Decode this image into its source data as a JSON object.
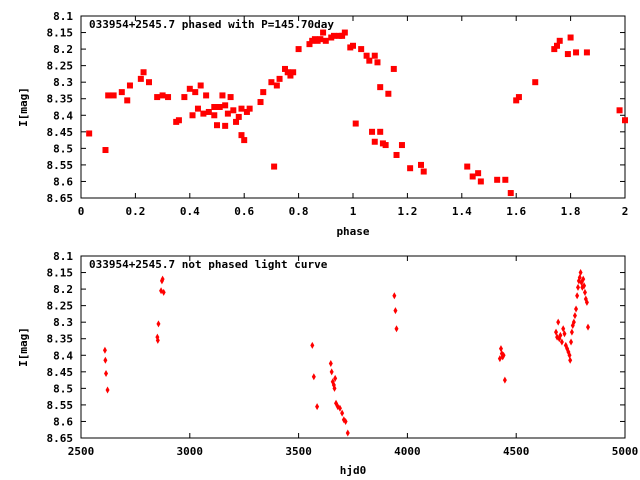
{
  "chart_data": [
    {
      "type": "scatter",
      "title": "033954+2545.7 phased with P=145.70day",
      "xlabel": "phase",
      "ylabel": "I[mag]",
      "xlim": [
        0,
        2
      ],
      "ylim": [
        8.65,
        8.1
      ],
      "y_inverted": true,
      "grid": false,
      "marker_color": "#ff0000",
      "marker": "square",
      "x_ticks": [
        "0",
        "0.2",
        "0.4",
        "0.6",
        "0.8",
        "1",
        "1.2",
        "1.4",
        "1.6",
        "1.8",
        "2"
      ],
      "y_ticks": [
        "8.1",
        "8.15",
        "8.2",
        "8.25",
        "8.3",
        "8.35",
        "8.4",
        "8.45",
        "8.5",
        "8.55",
        "8.6",
        "8.65"
      ],
      "points": [
        [
          0.03,
          8.455
        ],
        [
          0.09,
          8.505
        ],
        [
          0.1,
          8.34
        ],
        [
          0.12,
          8.34
        ],
        [
          0.15,
          8.33
        ],
        [
          0.17,
          8.355
        ],
        [
          0.18,
          8.31
        ],
        [
          0.22,
          8.29
        ],
        [
          0.23,
          8.27
        ],
        [
          0.25,
          8.3
        ],
        [
          0.28,
          8.345
        ],
        [
          0.3,
          8.34
        ],
        [
          0.32,
          8.345
        ],
        [
          0.35,
          8.42
        ],
        [
          0.36,
          8.415
        ],
        [
          0.38,
          8.345
        ],
        [
          0.4,
          8.32
        ],
        [
          0.41,
          8.4
        ],
        [
          0.42,
          8.33
        ],
        [
          0.43,
          8.38
        ],
        [
          0.44,
          8.31
        ],
        [
          0.45,
          8.395
        ],
        [
          0.46,
          8.34
        ],
        [
          0.47,
          8.39
        ],
        [
          0.49,
          8.4
        ],
        [
          0.49,
          8.375
        ],
        [
          0.5,
          8.43
        ],
        [
          0.51,
          8.375
        ],
        [
          0.52,
          8.34
        ],
        [
          0.53,
          8.432
        ],
        [
          0.53,
          8.37
        ],
        [
          0.54,
          8.395
        ],
        [
          0.55,
          8.345
        ],
        [
          0.56,
          8.385
        ],
        [
          0.57,
          8.42
        ],
        [
          0.58,
          8.405
        ],
        [
          0.59,
          8.38
        ],
        [
          0.59,
          8.46
        ],
        [
          0.6,
          8.475
        ],
        [
          0.61,
          8.39
        ],
        [
          0.62,
          8.38
        ],
        [
          0.66,
          8.36
        ],
        [
          0.67,
          8.33
        ],
        [
          0.7,
          8.3
        ],
        [
          0.71,
          8.555
        ],
        [
          0.72,
          8.31
        ],
        [
          0.73,
          8.29
        ],
        [
          0.75,
          8.26
        ],
        [
          0.76,
          8.27
        ],
        [
          0.77,
          8.28
        ],
        [
          0.78,
          8.27
        ],
        [
          0.8,
          8.2
        ],
        [
          0.84,
          8.185
        ],
        [
          0.85,
          8.175
        ],
        [
          0.86,
          8.17
        ],
        [
          0.87,
          8.175
        ],
        [
          0.88,
          8.17
        ],
        [
          0.89,
          8.15
        ],
        [
          0.9,
          8.175
        ],
        [
          0.92,
          8.165
        ],
        [
          0.93,
          8.16
        ],
        [
          0.95,
          8.16
        ],
        [
          0.96,
          8.16
        ],
        [
          0.97,
          8.15
        ],
        [
          0.99,
          8.195
        ],
        [
          1.0,
          8.19
        ],
        [
          1.01,
          8.425
        ],
        [
          1.03,
          8.2
        ],
        [
          1.05,
          8.22
        ],
        [
          1.06,
          8.235
        ],
        [
          1.07,
          8.45
        ],
        [
          1.08,
          8.48
        ],
        [
          1.08,
          8.22
        ],
        [
          1.09,
          8.24
        ],
        [
          1.1,
          8.315
        ],
        [
          1.1,
          8.45
        ],
        [
          1.11,
          8.485
        ],
        [
          1.12,
          8.49
        ],
        [
          1.13,
          8.335
        ],
        [
          1.15,
          8.26
        ],
        [
          1.16,
          8.52
        ],
        [
          1.18,
          8.49
        ],
        [
          1.21,
          8.56
        ],
        [
          1.25,
          8.55
        ],
        [
          1.26,
          8.57
        ],
        [
          1.42,
          8.555
        ],
        [
          1.44,
          8.585
        ],
        [
          1.46,
          8.575
        ],
        [
          1.47,
          8.6
        ],
        [
          1.53,
          8.595
        ],
        [
          1.56,
          8.595
        ],
        [
          1.58,
          8.635
        ],
        [
          1.6,
          8.355
        ],
        [
          1.61,
          8.345
        ],
        [
          1.67,
          8.3
        ],
        [
          1.74,
          8.2
        ],
        [
          1.75,
          8.19
        ],
        [
          1.76,
          8.175
        ],
        [
          1.79,
          8.215
        ],
        [
          1.8,
          8.165
        ],
        [
          1.82,
          8.21
        ],
        [
          1.86,
          8.21
        ],
        [
          1.98,
          8.385
        ],
        [
          2.0,
          8.415
        ]
      ]
    },
    {
      "type": "scatter",
      "title": "033954+2545.7 not phased light curve",
      "xlabel": "hjd0",
      "ylabel": "I[mag]",
      "xlim": [
        2500,
        5000
      ],
      "ylim": [
        8.65,
        8.1
      ],
      "y_inverted": true,
      "grid": false,
      "marker_color": "#ff0000",
      "marker": "diamond",
      "x_ticks": [
        "2500",
        "3000",
        "3500",
        "4000",
        "4500",
        "5000"
      ],
      "y_ticks": [
        "8.1",
        "8.15",
        "8.2",
        "8.25",
        "8.3",
        "8.35",
        "8.4",
        "8.45",
        "8.5",
        "8.55",
        "8.6",
        "8.65"
      ],
      "points": [
        [
          2610,
          8.385
        ],
        [
          2612,
          8.415
        ],
        [
          2615,
          8.455
        ],
        [
          2622,
          8.505
        ],
        [
          2851,
          8.345
        ],
        [
          2853,
          8.355
        ],
        [
          2856,
          8.305
        ],
        [
          2868,
          8.205
        ],
        [
          2872,
          8.175
        ],
        [
          2875,
          8.17
        ],
        [
          2880,
          8.21
        ],
        [
          3563,
          8.37
        ],
        [
          3570,
          8.465
        ],
        [
          3585,
          8.555
        ],
        [
          3648,
          8.425
        ],
        [
          3652,
          8.45
        ],
        [
          3657,
          8.48
        ],
        [
          3662,
          8.49
        ],
        [
          3665,
          8.5
        ],
        [
          3668,
          8.47
        ],
        [
          3672,
          8.545
        ],
        [
          3680,
          8.555
        ],
        [
          3690,
          8.56
        ],
        [
          3700,
          8.575
        ],
        [
          3708,
          8.595
        ],
        [
          3716,
          8.6
        ],
        [
          3726,
          8.635
        ],
        [
          3940,
          8.22
        ],
        [
          3945,
          8.265
        ],
        [
          3950,
          8.32
        ],
        [
          4425,
          8.41
        ],
        [
          4430,
          8.38
        ],
        [
          4434,
          8.395
        ],
        [
          4438,
          8.405
        ],
        [
          4442,
          8.4
        ],
        [
          4448,
          8.475
        ],
        [
          4683,
          8.33
        ],
        [
          4688,
          8.345
        ],
        [
          4693,
          8.3
        ],
        [
          4698,
          8.35
        ],
        [
          4703,
          8.34
        ],
        [
          4710,
          8.36
        ],
        [
          4716,
          8.32
        ],
        [
          4722,
          8.335
        ],
        [
          4728,
          8.37
        ],
        [
          4734,
          8.38
        ],
        [
          4740,
          8.39
        ],
        [
          4745,
          8.4
        ],
        [
          4748,
          8.415
        ],
        [
          4752,
          8.36
        ],
        [
          4756,
          8.33
        ],
        [
          4760,
          8.31
        ],
        [
          4765,
          8.3
        ],
        [
          4770,
          8.28
        ],
        [
          4775,
          8.26
        ],
        [
          4780,
          8.22
        ],
        [
          4784,
          8.195
        ],
        [
          4788,
          8.175
        ],
        [
          4792,
          8.165
        ],
        [
          4796,
          8.15
        ],
        [
          4800,
          8.18
        ],
        [
          4804,
          8.195
        ],
        [
          4808,
          8.17
        ],
        [
          4812,
          8.19
        ],
        [
          4816,
          8.21
        ],
        [
          4820,
          8.23
        ],
        [
          4825,
          8.24
        ],
        [
          4830,
          8.315
        ]
      ]
    }
  ]
}
